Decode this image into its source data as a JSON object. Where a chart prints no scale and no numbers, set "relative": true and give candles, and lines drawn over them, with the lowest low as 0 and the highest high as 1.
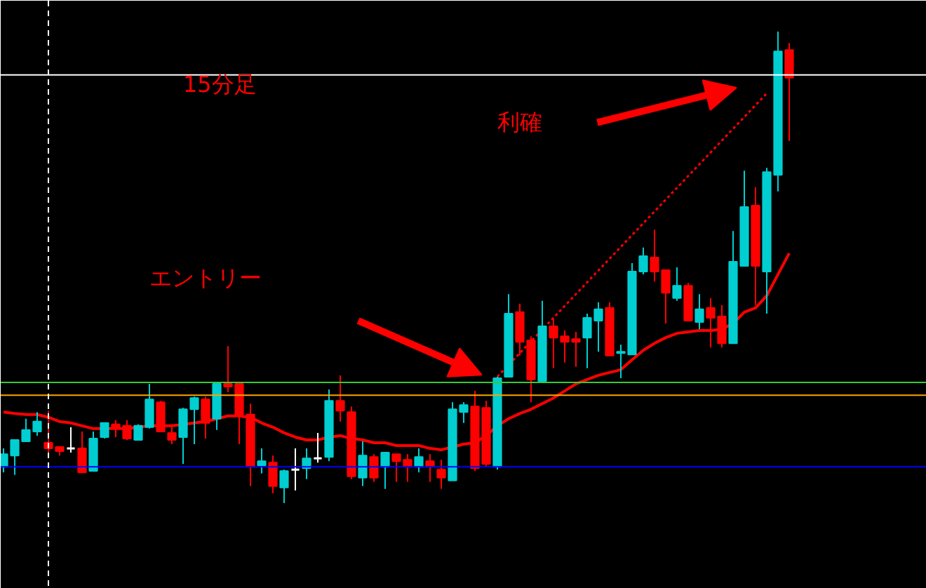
{
  "chart_data": {
    "type": "candlestick",
    "relative": true,
    "grid": false,
    "tick_labels": false,
    "categories": [
      null,
      null,
      null,
      null,
      null,
      null,
      null,
      null,
      null,
      null,
      null,
      null,
      null,
      null,
      null,
      null,
      null,
      null,
      null,
      null,
      null,
      null,
      null,
      null,
      null,
      null,
      null,
      null,
      null,
      null,
      null,
      null,
      null,
      null,
      null,
      null,
      null,
      null,
      null,
      null,
      null,
      null,
      null,
      null,
      null,
      null,
      null,
      null,
      null,
      null,
      null,
      null,
      null,
      null,
      null,
      null,
      null,
      null,
      null,
      null,
      null,
      null,
      null,
      null,
      null,
      null,
      null,
      null,
      null,
      null,
      null
    ],
    "ohlc": [
      [
        0.077,
        0.116,
        0.065,
        0.104
      ],
      [
        0.101,
        0.134,
        0.06,
        0.134
      ],
      [
        0.131,
        0.179,
        0.131,
        0.155
      ],
      [
        0.152,
        0.193,
        0.143,
        0.173
      ],
      [
        0.128,
        0.196,
        0.107,
        0.116
      ],
      [
        0.119,
        0.119,
        0.101,
        0.11
      ],
      [
        0.116,
        0.161,
        0.107,
        0.116
      ],
      [
        0.116,
        0.152,
        0.065,
        0.065
      ],
      [
        0.068,
        0.152,
        0.068,
        0.137
      ],
      [
        0.14,
        0.17,
        0.137,
        0.17
      ],
      [
        0.167,
        0.176,
        0.14,
        0.158
      ],
      [
        0.164,
        0.176,
        0.134,
        0.137
      ],
      [
        0.134,
        0.167,
        0.134,
        0.164
      ],
      [
        0.161,
        0.253,
        0.158,
        0.22
      ],
      [
        0.214,
        0.217,
        0.152,
        0.152
      ],
      [
        0.149,
        0.167,
        0.125,
        0.134
      ],
      [
        0.14,
        0.202,
        0.083,
        0.199
      ],
      [
        0.199,
        0.226,
        0.125,
        0.223
      ],
      [
        0.22,
        0.226,
        0.137,
        0.17
      ],
      [
        0.179,
        0.253,
        0.155,
        0.253
      ],
      [
        0.253,
        0.333,
        0.235,
        0.247
      ],
      [
        0.253,
        0.253,
        0.125,
        0.188
      ],
      [
        0.188,
        0.211,
        0.036,
        0.077
      ],
      [
        0.08,
        0.116,
        0.063,
        0.089
      ],
      [
        0.086,
        0.101,
        0.021,
        0.036
      ],
      [
        0.033,
        0.071,
        0,
        0.068
      ],
      [
        0.071,
        0.116,
        0.027,
        0.071
      ],
      [
        0.074,
        0.116,
        0.051,
        0.095
      ],
      [
        0.095,
        0.149,
        0.086,
        0.095
      ],
      [
        0.098,
        0.241,
        0.089,
        0.217
      ],
      [
        0.217,
        0.271,
        0.173,
        0.196
      ],
      [
        0.193,
        0.205,
        0.051,
        0.057
      ],
      [
        0.054,
        0.131,
        0.036,
        0.101
      ],
      [
        0.098,
        0.104,
        0.045,
        0.054
      ],
      [
        0.077,
        0.107,
        0.03,
        0.107
      ],
      [
        0.104,
        0.104,
        0.045,
        0.089
      ],
      [
        0.092,
        0.104,
        0.045,
        0.077
      ],
      [
        0.077,
        0.116,
        0.065,
        0.098
      ],
      [
        0.089,
        0.104,
        0.045,
        0.077
      ],
      [
        0.071,
        0.092,
        0.03,
        0.054
      ],
      [
        0.048,
        0.214,
        0.048,
        0.199
      ],
      [
        0.193,
        0.214,
        0.17,
        0.208
      ],
      [
        0.205,
        0.238,
        0.068,
        0.074
      ],
      [
        0.202,
        0.217,
        0.077,
        0.083
      ],
      [
        0.077,
        0.268,
        0.071,
        0.265
      ],
      [
        0.268,
        0.443,
        0.268,
        0.402
      ],
      [
        0.405,
        0.423,
        0.313,
        0.342
      ],
      [
        0.345,
        0.354,
        0.214,
        0.262
      ],
      [
        0.259,
        0.429,
        0.259,
        0.375
      ],
      [
        0.375,
        0.39,
        0.286,
        0.351
      ],
      [
        0.354,
        0.366,
        0.298,
        0.342
      ],
      [
        0.348,
        0.363,
        0.289,
        0.342
      ],
      [
        0.351,
        0.402,
        0.286,
        0.393
      ],
      [
        0.387,
        0.426,
        0.321,
        0.411
      ],
      [
        0.414,
        0.426,
        0.313,
        0.313
      ],
      [
        0.318,
        0.336,
        0.265,
        0.321
      ],
      [
        0.315,
        0.509,
        0.315,
        0.491
      ],
      [
        0.491,
        0.542,
        0.485,
        0.524
      ],
      [
        0.521,
        0.58,
        0.47,
        0.491
      ],
      [
        0.494,
        0.494,
        0.381,
        0.446
      ],
      [
        0.435,
        0.5,
        0.429,
        0.461
      ],
      [
        0.461,
        0.467,
        0.387,
        0.387
      ],
      [
        0.384,
        0.443,
        0.369,
        0.411
      ],
      [
        0.414,
        0.435,
        0.33,
        0.393
      ],
      [
        0.396,
        0.42,
        0.33,
        0.339
      ],
      [
        0.339,
        0.577,
        0.339,
        0.512
      ],
      [
        0.503,
        0.705,
        0.503,
        0.628
      ],
      [
        0.631,
        0.67,
        0.42,
        0.503
      ],
      [
        0.491,
        0.711,
        0.402,
        0.702
      ],
      [
        0.696,
        1,
        0.661,
        0.958
      ],
      [
        0.961,
        0.976,
        0.768,
        0.902
      ]
    ],
    "colors": [
      "#00ced1",
      "#00ced1",
      "#00ced1",
      "#00ced1",
      "#ff0000",
      "#ff0000",
      "#ffffff",
      "#ff0000",
      "#00ced1",
      "#00ced1",
      "#ff0000",
      "#ff0000",
      "#00ced1",
      "#00ced1",
      "#ff0000",
      "#ff0000",
      "#00ced1",
      "#00ced1",
      "#ff0000",
      "#00ced1",
      "#ff0000",
      "#ff0000",
      "#ff0000",
      "#00ced1",
      "#ff0000",
      "#00ced1",
      "#ffffff",
      "#00ced1",
      "#ffffff",
      "#00ced1",
      "#ff0000",
      "#ff0000",
      "#00ced1",
      "#ff0000",
      "#00ced1",
      "#ff0000",
      "#ff0000",
      "#00ced1",
      "#ff0000",
      "#ff0000",
      "#00ced1",
      "#00ced1",
      "#ff0000",
      "#ff0000",
      "#00ced1",
      "#00ced1",
      "#ff0000",
      "#ff0000",
      "#00ced1",
      "#ff0000",
      "#ff0000",
      "#ff0000",
      "#00ced1",
      "#00ced1",
      "#ff0000",
      "#00ced1",
      "#00ced1",
      "#00ced1",
      "#ff0000",
      "#ff0000",
      "#00ced1",
      "#ff0000",
      "#00ced1",
      "#ff0000",
      "#ff0000",
      "#00ced1",
      "#00ced1",
      "#ff0000",
      "#00ced1",
      "#00ced1",
      "#ff0000"
    ],
    "series": [
      {
        "type": "line",
        "color": "#ff0000",
        "line_style": "solid",
        "values": [
          0.193,
          0.19,
          0.188,
          0.188,
          0.182,
          0.173,
          0.17,
          0.164,
          0.158,
          0.158,
          0.158,
          0.158,
          0.161,
          0.164,
          0.164,
          0.164,
          0.167,
          0.17,
          0.173,
          0.179,
          0.185,
          0.185,
          0.182,
          0.17,
          0.161,
          0.149,
          0.14,
          0.134,
          0.134,
          0.14,
          0.143,
          0.137,
          0.134,
          0.128,
          0.128,
          0.122,
          0.122,
          0.122,
          0.116,
          0.113,
          0.119,
          0.125,
          0.128,
          0.143,
          0.164,
          0.179,
          0.19,
          0.199,
          0.211,
          0.223,
          0.238,
          0.253,
          0.262,
          0.271,
          0.277,
          0.283,
          0.304,
          0.324,
          0.339,
          0.351,
          0.36,
          0.363,
          0.366,
          0.366,
          0.369,
          0.381,
          0.405,
          0.414,
          0.44,
          0.485,
          0.53
        ]
      },
      {
        "type": "line",
        "color": "#ff0000",
        "line_style": "dotted",
        "values": [
          null,
          null,
          null,
          null,
          null,
          null,
          null,
          null,
          null,
          null,
          null,
          null,
          null,
          null,
          null,
          null,
          null,
          null,
          null,
          null,
          null,
          null,
          null,
          null,
          null,
          null,
          null,
          null,
          null,
          null,
          null,
          null,
          null,
          null,
          null,
          null,
          null,
          null,
          null,
          null,
          null,
          null,
          null,
          null,
          0.268,
          null,
          null,
          null,
          null,
          null,
          null,
          null,
          null,
          null,
          null,
          null,
          null,
          null,
          null,
          null,
          null,
          null,
          null,
          null,
          null,
          null,
          null,
          null,
          0.869,
          null,
          null
        ]
      }
    ],
    "ref_lines": [
      {
        "axis": "y",
        "value": 0.908,
        "color": "#ffffff",
        "line_style": "solid"
      },
      {
        "axis": "y",
        "value": 0.256,
        "color": "#33cc33",
        "line_style": "solid"
      },
      {
        "axis": "y",
        "value": 0.229,
        "color": "#ffa500",
        "line_style": "solid"
      },
      {
        "axis": "y",
        "value": 0.077,
        "color": "#0000ff",
        "line_style": "solid"
      }
    ],
    "annotations": [
      "15分足",
      "エントリー",
      "利確"
    ]
  }
}
